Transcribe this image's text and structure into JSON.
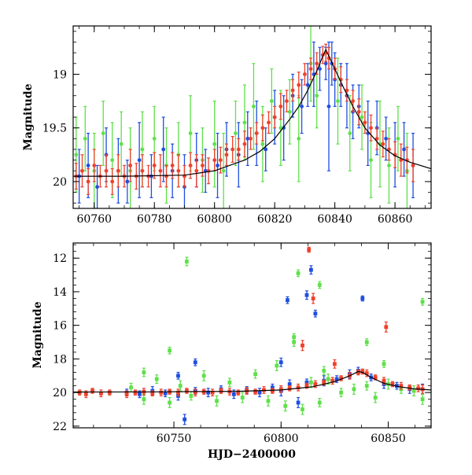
{
  "chart_data": [
    {
      "type": "scatter",
      "title": "",
      "xlabel": "",
      "ylabel": "Magnitude",
      "xlim": [
        60753,
        60872
      ],
      "ylim": [
        20.25,
        18.55
      ],
      "y_inverted": true,
      "grid": false,
      "x_ticks": [
        60760,
        60780,
        60800,
        60820,
        60840,
        60860
      ],
      "y_ticks": [
        19,
        19.5,
        20
      ],
      "colors": {
        "blue": "#1f4fe0",
        "green": "#5fe04a",
        "red": "#f0402a",
        "model": "#000000"
      },
      "model_curve": {
        "name": "",
        "color": "#000000",
        "x": [
          60753,
          60770,
          60790,
          60800,
          60810,
          60815,
          60820,
          60825,
          60828,
          60831,
          60834,
          60836,
          60837,
          60838,
          60840,
          60843,
          60846,
          60850,
          60855,
          60860,
          60865,
          60872
        ],
        "y": [
          19.95,
          19.95,
          19.94,
          19.9,
          19.8,
          19.72,
          19.6,
          19.42,
          19.3,
          19.15,
          18.97,
          18.83,
          18.77,
          18.83,
          18.95,
          19.13,
          19.3,
          19.5,
          19.66,
          19.76,
          19.82,
          19.88
        ]
      },
      "series": [
        {
          "color": "#1f4fe0",
          "x": [
            60755,
            60758,
            60761,
            60764,
            60768,
            60771,
            60775,
            60779,
            60783,
            60786,
            60790,
            60794,
            60797,
            60801,
            60804,
            60808,
            60811,
            60814,
            60817,
            60820,
            60823,
            60826,
            60829,
            60831,
            60833,
            60835,
            60837,
            60838,
            60839,
            60840,
            60842,
            60844,
            60846,
            60848,
            60851,
            60854,
            60857,
            60860,
            60863,
            60866
          ],
          "y": [
            19.95,
            19.85,
            20.05,
            19.75,
            19.9,
            20.0,
            19.8,
            19.95,
            19.7,
            19.9,
            20.05,
            19.8,
            19.9,
            19.85,
            19.7,
            19.75,
            19.6,
            19.55,
            19.7,
            19.4,
            19.5,
            19.2,
            19.3,
            19.1,
            19.0,
            18.95,
            18.9,
            19.3,
            18.9,
            19.05,
            19.1,
            19.2,
            19.35,
            19.3,
            19.55,
            19.5,
            19.6,
            19.75,
            19.7,
            19.85
          ],
          "err": [
            0.25,
            0.3,
            0.2,
            0.25,
            0.3,
            0.2,
            0.35,
            0.2,
            0.3,
            0.25,
            0.3,
            0.25,
            0.2,
            0.3,
            0.25,
            0.3,
            0.25,
            0.3,
            0.2,
            0.25,
            0.3,
            0.2,
            0.25,
            0.2,
            0.3,
            0.2,
            0.15,
            0.6,
            0.2,
            0.25,
            0.2,
            0.3,
            0.25,
            0.2,
            0.3,
            0.25,
            0.2,
            0.3,
            0.25,
            0.3
          ]
        },
        {
          "color": "#5fe04a",
          "x": [
            60754,
            60757,
            60760,
            60763,
            60766,
            60769,
            60772,
            60776,
            60780,
            60784,
            60788,
            60792,
            60796,
            60800,
            60803,
            60807,
            60810,
            60813,
            60816,
            60819,
            60822,
            60825,
            60828,
            60832,
            60834,
            60841,
            60845,
            60849,
            60852,
            60855,
            60858,
            60861,
            60864
          ],
          "y": [
            19.75,
            19.6,
            19.9,
            19.55,
            19.8,
            19.65,
            19.9,
            19.7,
            19.6,
            19.85,
            19.75,
            19.55,
            19.8,
            19.65,
            19.9,
            19.55,
            19.45,
            19.3,
            19.65,
            19.25,
            19.5,
            19.35,
            19.6,
            18.9,
            19.2,
            19.25,
            19.55,
            19.4,
            19.8,
            19.65,
            19.85,
            19.6,
            19.9
          ],
          "err": [
            0.35,
            0.3,
            0.35,
            0.3,
            0.35,
            0.3,
            0.4,
            0.35,
            0.3,
            0.35,
            0.3,
            0.35,
            0.3,
            0.4,
            0.35,
            0.3,
            0.35,
            0.4,
            0.35,
            0.3,
            0.35,
            0.3,
            0.4,
            0.35,
            0.3,
            0.4,
            0.35,
            0.3,
            0.35,
            0.4,
            0.35,
            0.3,
            0.35
          ]
        },
        {
          "color": "#f0402a",
          "x": [
            60754,
            60756,
            60758,
            60760,
            60762,
            60764,
            60766,
            60768,
            60770,
            60772,
            60774,
            60776,
            60778,
            60780,
            60782,
            60784,
            60786,
            60788,
            60790,
            60792,
            60794,
            60796,
            60798,
            60800,
            60802,
            60804,
            60806,
            60808,
            60810,
            60812,
            60814,
            60816,
            60818,
            60820,
            60822,
            60824,
            60826,
            60828,
            60830,
            60832,
            60834,
            60836,
            60837,
            60838,
            60840,
            60842,
            60844,
            60846,
            60848,
            60850,
            60852,
            60854,
            60856,
            60858,
            60860,
            60862,
            60864,
            60866
          ],
          "y": [
            19.95,
            19.9,
            20.0,
            19.85,
            19.95,
            19.9,
            20.0,
            19.9,
            19.95,
            19.85,
            19.95,
            19.9,
            19.95,
            19.85,
            19.9,
            19.95,
            19.85,
            19.9,
            19.95,
            19.85,
            19.9,
            19.85,
            19.9,
            19.8,
            19.8,
            19.75,
            19.7,
            19.7,
            19.65,
            19.6,
            19.55,
            19.5,
            19.45,
            19.4,
            19.3,
            19.25,
            19.15,
            19.1,
            19.0,
            18.95,
            18.9,
            18.82,
            18.8,
            18.85,
            18.95,
            19.05,
            19.15,
            19.25,
            19.35,
            19.45,
            19.5,
            19.6,
            19.65,
            19.7,
            19.75,
            19.8,
            19.8,
            19.85
          ],
          "err": [
            0.12,
            0.15,
            0.12,
            0.15,
            0.1,
            0.15,
            0.12,
            0.15,
            0.1,
            0.15,
            0.12,
            0.15,
            0.1,
            0.12,
            0.15,
            0.1,
            0.12,
            0.15,
            0.1,
            0.12,
            0.15,
            0.1,
            0.12,
            0.1,
            0.12,
            0.1,
            0.12,
            0.1,
            0.12,
            0.1,
            0.1,
            0.12,
            0.1,
            0.1,
            0.12,
            0.1,
            0.1,
            0.12,
            0.1,
            0.1,
            0.1,
            0.08,
            0.08,
            0.1,
            0.1,
            0.12,
            0.1,
            0.1,
            0.12,
            0.1,
            0.12,
            0.1,
            0.12,
            0.1,
            0.12,
            0.15,
            0.12,
            0.15
          ]
        }
      ]
    },
    {
      "type": "scatter",
      "title": "",
      "xlabel": "HJD−2400000",
      "ylabel": "Magnitude",
      "xlim": [
        60703,
        60870
      ],
      "ylim": [
        22.1,
        11.1
      ],
      "y_inverted": true,
      "grid": false,
      "x_ticks": [
        60750,
        60800,
        60850
      ],
      "y_ticks": [
        12,
        14,
        16,
        18,
        20,
        22
      ],
      "colors": {
        "blue": "#1f4fe0",
        "green": "#5fe04a",
        "red": "#f0402a",
        "model": "#000000"
      },
      "model_curve": {
        "name": "",
        "color": "#000000",
        "x": [
          60703,
          60740,
          60780,
          60800,
          60815,
          60825,
          60832,
          60836,
          60838,
          60842,
          60848,
          60855,
          60862,
          60870
        ],
        "y": [
          19.97,
          19.96,
          19.93,
          19.85,
          19.65,
          19.35,
          19.0,
          18.75,
          18.8,
          19.1,
          19.45,
          19.65,
          19.78,
          19.85
        ]
      },
      "series": [
        {
          "color": "#1f4fe0",
          "x": [
            60728,
            60734,
            60740,
            60746,
            60752,
            60755,
            60760,
            60766,
            60772,
            60778,
            60784,
            60790,
            60796,
            60800,
            60804,
            60808,
            60812,
            60814,
            60816,
            60820,
            60826,
            60832,
            60836,
            60838,
            60842,
            60848,
            60854,
            60860,
            60866,
            60803,
            60752,
            60800,
            60812,
            60760
          ],
          "y": [
            20.0,
            20.1,
            19.9,
            20.05,
            20.2,
            21.6,
            19.9,
            20.0,
            19.8,
            20.1,
            19.85,
            20.0,
            19.7,
            19.9,
            19.5,
            20.6,
            14.2,
            12.7,
            15.3,
            19.3,
            19.2,
            18.9,
            18.7,
            14.4,
            19.1,
            19.5,
            19.6,
            19.8,
            19.8,
            14.5,
            19.0,
            18.2,
            19.4,
            18.2
          ],
          "err": [
            0.2,
            0.2,
            0.25,
            0.2,
            0.25,
            0.3,
            0.2,
            0.25,
            0.2,
            0.25,
            0.2,
            0.25,
            0.2,
            0.3,
            0.25,
            0.3,
            0.25,
            0.25,
            0.2,
            0.3,
            0.2,
            0.25,
            0.2,
            0.15,
            0.2,
            0.25,
            0.2,
            0.25,
            0.3,
            0.2,
            0.2,
            0.25,
            0.2,
            0.2
          ]
        },
        {
          "color": "#5fe04a",
          "x": [
            60730,
            60736,
            60742,
            60748,
            60753,
            60758,
            60764,
            60770,
            60776,
            60782,
            60788,
            60794,
            60798,
            60802,
            60806,
            60810,
            60814,
            60818,
            60822,
            60828,
            60834,
            60840,
            60844,
            60850,
            60856,
            60862,
            60866,
            60756,
            60748,
            60806,
            60808,
            60818,
            60820,
            60840,
            60848,
            60866,
            60736
          ],
          "y": [
            19.7,
            20.4,
            19.2,
            20.6,
            19.6,
            20.2,
            19.0,
            20.5,
            19.4,
            20.3,
            18.9,
            20.5,
            18.4,
            20.8,
            17.0,
            21.0,
            19.4,
            20.6,
            19.2,
            20.0,
            19.8,
            19.6,
            20.3,
            19.5,
            19.8,
            19.9,
            20.4,
            12.2,
            17.5,
            16.7,
            12.9,
            13.6,
            18.7,
            17.0,
            18.3,
            14.6,
            18.8
          ],
          "err": [
            0.25,
            0.3,
            0.25,
            0.3,
            0.3,
            0.25,
            0.3,
            0.3,
            0.25,
            0.3,
            0.25,
            0.3,
            0.3,
            0.3,
            0.25,
            0.3,
            0.3,
            0.25,
            0.3,
            0.25,
            0.3,
            0.25,
            0.3,
            0.3,
            0.25,
            0.3,
            0.3,
            0.25,
            0.2,
            0.2,
            0.2,
            0.2,
            0.25,
            0.2,
            0.2,
            0.2,
            0.25
          ]
        },
        {
          "color": "#f0402a",
          "x": [
            60706,
            60709,
            60712,
            60716,
            60720,
            60728,
            60732,
            60736,
            60740,
            60744,
            60748,
            60752,
            60756,
            60760,
            60764,
            60768,
            60772,
            60776,
            60780,
            60784,
            60788,
            60792,
            60796,
            60800,
            60804,
            60808,
            60812,
            60816,
            60820,
            60824,
            60828,
            60832,
            60836,
            60838,
            60840,
            60844,
            60848,
            60852,
            60856,
            60860,
            60864,
            60866,
            60813,
            60815,
            60810,
            60849,
            60825
          ],
          "y": [
            20.0,
            20.1,
            19.9,
            20.05,
            20.0,
            20.1,
            20.0,
            19.95,
            20.05,
            20.0,
            19.95,
            20.0,
            19.9,
            20.0,
            19.95,
            20.0,
            19.9,
            19.95,
            20.0,
            19.9,
            19.95,
            19.85,
            19.9,
            19.8,
            19.75,
            19.7,
            19.6,
            19.5,
            19.4,
            19.3,
            19.15,
            19.0,
            18.8,
            18.75,
            18.85,
            19.1,
            19.3,
            19.5,
            19.6,
            19.7,
            19.75,
            19.8,
            11.5,
            14.4,
            17.2,
            16.1,
            18.3
          ],
          "err": [
            0.15,
            0.2,
            0.15,
            0.2,
            0.15,
            0.2,
            0.15,
            0.2,
            0.15,
            0.2,
            0.15,
            0.2,
            0.15,
            0.2,
            0.15,
            0.2,
            0.15,
            0.2,
            0.15,
            0.2,
            0.15,
            0.2,
            0.15,
            0.2,
            0.15,
            0.2,
            0.15,
            0.2,
            0.15,
            0.2,
            0.15,
            0.2,
            0.15,
            0.15,
            0.2,
            0.15,
            0.2,
            0.15,
            0.2,
            0.15,
            0.2,
            0.25,
            0.15,
            0.3,
            0.3,
            0.3,
            0.25
          ]
        }
      ]
    }
  ]
}
